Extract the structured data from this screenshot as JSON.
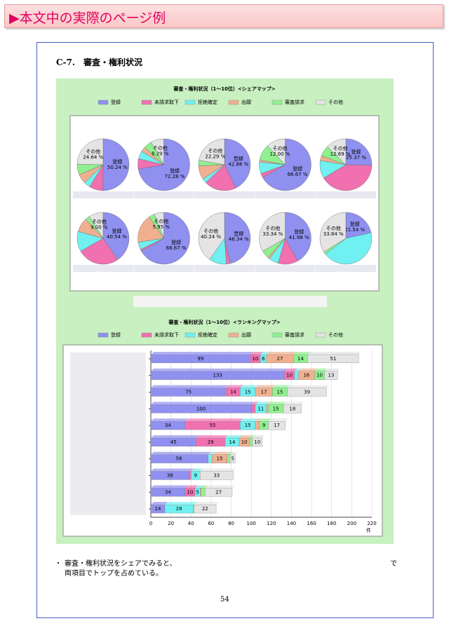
{
  "header": {
    "title": "▶本文中の実際のページ例"
  },
  "section": {
    "title": "C-7.　審査・権利状況"
  },
  "chart_data": [
    {
      "type": "pie",
      "title": "審査・権利状況（1～10位）<シェアマップ>",
      "series": [
        {
          "name": "登録",
          "color": "#9090f0",
          "values": [
            50.24,
            72.28,
            42.86,
            66.67,
            25.37,
            40.54,
            66.67,
            46.34,
            41.98,
            21.54
          ],
          "value_labels": [
            "50.24 %",
            "72.28 %",
            "42.86 %",
            "66.67 %",
            "25.37 %",
            "40.54 %",
            "66.67 %",
            "46.34 %",
            "41.98 %",
            "21.54 %"
          ]
        },
        {
          "name": "未請求取下",
          "color": "#f070b0",
          "values": [
            8.5,
            6.43,
            20.0,
            2.67,
            41.04,
            26.13,
            1.19,
            2.44,
            12.35,
            0
          ]
        },
        {
          "name": "拒絶確定",
          "color": "#70f0f0",
          "values": [
            4.0,
            5.0,
            2.86,
            7.33,
            11.19,
            12.61,
            4.76,
            10.98,
            6.17,
            43.08
          ]
        },
        {
          "name": "出願",
          "color": "#f0b090",
          "values": [
            6.0,
            3.0,
            8.57,
            1.33,
            2.99,
            9.01,
            17.86,
            0,
            1.22,
            0
          ]
        },
        {
          "name": "審査請求",
          "color": "#90f090",
          "values": [
            6.62,
            5.0,
            3.43,
            10.0,
            6.72,
            2.71,
            3.57,
            0,
            4.94,
            1.54
          ]
        },
        {
          "name": "その他",
          "color": "#e4e4e4",
          "values": [
            24.64,
            8.29,
            22.29,
            12.0,
            12.69,
            9.0,
            5.95,
            40.24,
            33.34,
            33.84
          ],
          "value_labels": [
            "24.64 %",
            "8.29 %",
            "22.29 %",
            "12.00 %",
            "12.69 %",
            "9.00 %",
            "5.95 %",
            "40.24 %",
            "33.34 %",
            "33.84 %"
          ]
        }
      ]
    },
    {
      "type": "hbar-stacked",
      "title": "審査・権利状況（1～10位）<ランキングマップ>",
      "categories": [
        null,
        null,
        null,
        null,
        null,
        null,
        null,
        null,
        null,
        null
      ],
      "series": [
        {
          "name": "登録",
          "color": "#9090f0",
          "values": [
            99,
            133,
            75,
            100,
            34,
            45,
            56,
            38,
            34,
            14
          ]
        },
        {
          "name": "未請求取下",
          "color": "#f070b0",
          "values": [
            10,
            10,
            14,
            4,
            55,
            29,
            1,
            2,
            10,
            0
          ]
        },
        {
          "name": "拒絶確定",
          "color": "#70f0f0",
          "values": [
            6,
            4,
            15,
            11,
            15,
            14,
            4,
            9,
            5,
            28
          ]
        },
        {
          "name": "出願",
          "color": "#f0b090",
          "values": [
            27,
            16,
            17,
            2,
            4,
            10,
            15,
            0,
            1,
            0
          ]
        },
        {
          "name": "審査請求",
          "color": "#90f090",
          "values": [
            14,
            10,
            15,
            15,
            9,
            3,
            3,
            0,
            4,
            1
          ]
        },
        {
          "name": "その他",
          "color": "#e4e4e4",
          "values": [
            51,
            13,
            39,
            18,
            17,
            10,
            5,
            33,
            27,
            22
          ]
        }
      ],
      "xlim": [
        0,
        220
      ],
      "xticks": [
        0,
        20,
        40,
        60,
        80,
        100,
        120,
        140,
        160,
        180,
        200,
        220
      ],
      "xlabel": "件",
      "grid": true
    }
  ],
  "body": {
    "bullet": "・",
    "line1": "審査・権利状況をシェアでみると、",
    "line1_end": "で",
    "line2": "両項目でトップを占めている。"
  },
  "footer": {
    "page_number": "54"
  }
}
